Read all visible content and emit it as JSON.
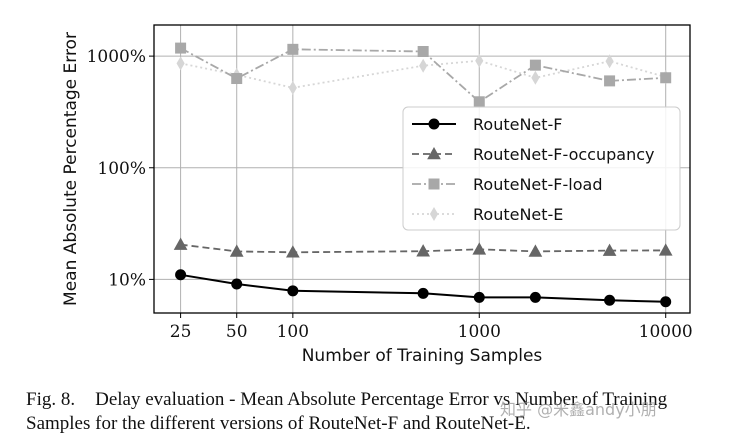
{
  "chart_data": {
    "type": "line",
    "xscale": "log",
    "yscale": "log",
    "xlim": [
      18,
      13500
    ],
    "ylim": [
      5,
      1900
    ],
    "grid": true,
    "legend_position": "center-right",
    "xlabel": "Number of Training Samples",
    "ylabel": "Mean Absolute Percentage Error",
    "xticks": [
      25,
      50,
      100,
      1000,
      10000
    ],
    "xtick_labels": [
      "25",
      "50",
      "100",
      "1000",
      "10000"
    ],
    "yticks": [
      10,
      100,
      1000
    ],
    "ytick_labels": [
      "10%",
      "100%",
      "1000%"
    ],
    "series": [
      {
        "name": "RouteNet-F",
        "color": "#000000",
        "marker": "circle",
        "line": "solid",
        "x": [
          25,
          50,
          100,
          500,
          1000,
          2000,
          5000,
          10000
        ],
        "y": [
          11,
          9.1,
          7.9,
          7.5,
          6.9,
          6.9,
          6.5,
          6.3
        ]
      },
      {
        "name": "RouteNet-F-occupancy",
        "color": "#666666",
        "marker": "triangle",
        "line": "dashed",
        "x": [
          25,
          50,
          100,
          500,
          1000,
          2000,
          5000,
          10000
        ],
        "y": [
          20.5,
          17.8,
          17.5,
          17.9,
          18.6,
          17.8,
          18.1,
          18.2
        ]
      },
      {
        "name": "RouteNet-F-load",
        "color": "#a8a8a8",
        "marker": "square",
        "line": "dashdot",
        "x": [
          25,
          50,
          100,
          500,
          1000,
          2000,
          5000,
          10000
        ],
        "y": [
          1180,
          630,
          1150,
          1100,
          390,
          830,
          600,
          640
        ]
      },
      {
        "name": "RouteNet-E",
        "color": "#d6d6d6",
        "marker": "diamond",
        "line": "dotted",
        "x": [
          25,
          50,
          100,
          500,
          1000,
          2000,
          5000,
          10000
        ],
        "y": [
          860,
          680,
          520,
          820,
          910,
          640,
          900,
          650
        ]
      }
    ]
  },
  "caption": {
    "label": "Fig. 8.",
    "text": "Delay evaluation - Mean Absolute Percentage Error vs Number of Training Samples for the different versions of RouteNet-F and RouteNet-E."
  },
  "watermark": "知乎 @米鑫andy小朋"
}
